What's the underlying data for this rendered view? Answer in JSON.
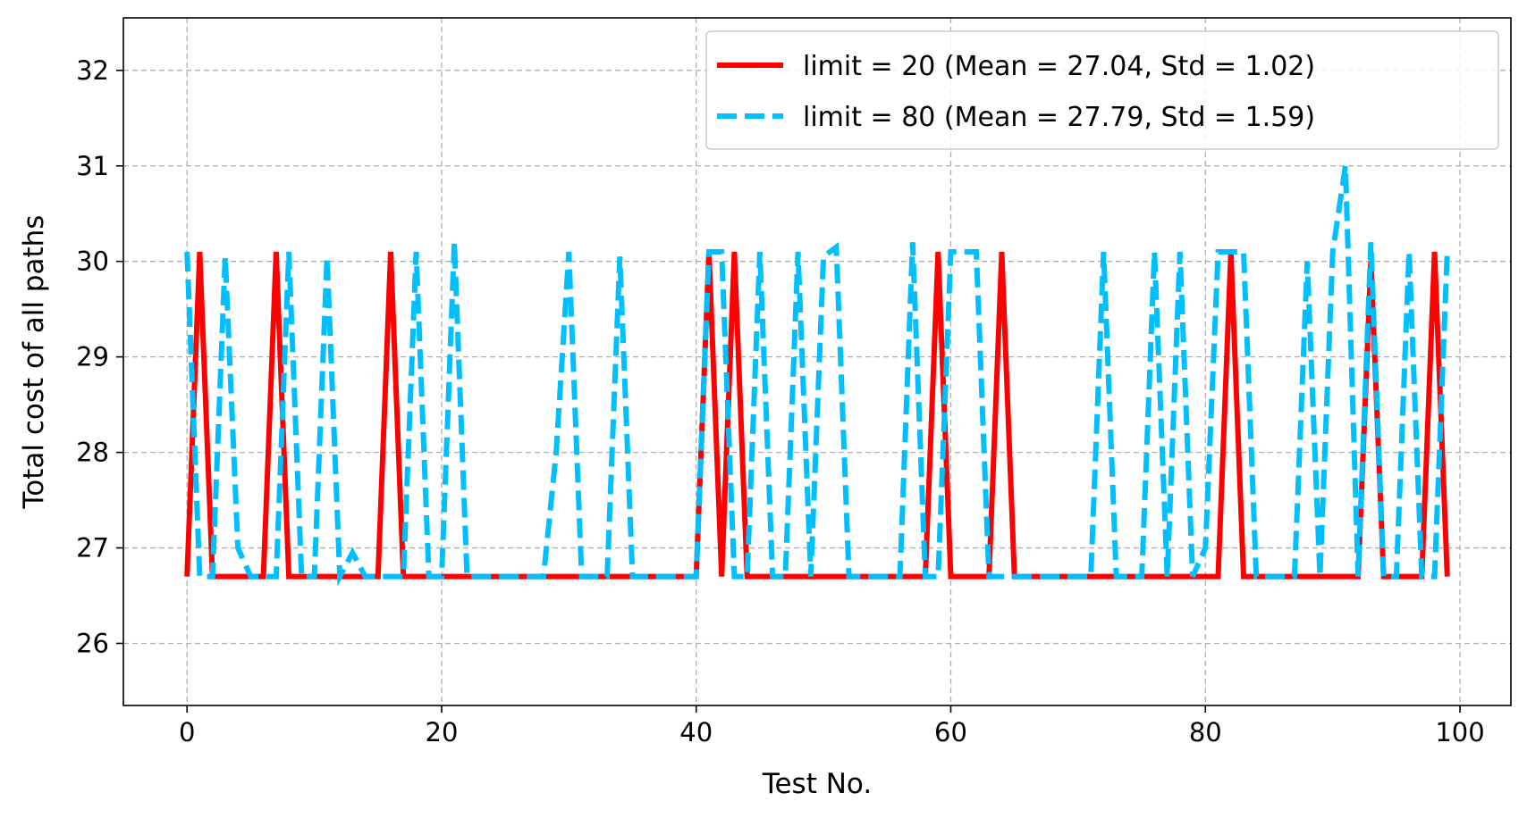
{
  "chart_data": {
    "type": "line",
    "xlabel": "Test No.",
    "ylabel": "Total cost of all paths",
    "xlim": [
      -5,
      104
    ],
    "ylim": [
      25.35,
      32.55
    ],
    "xticks": [
      0,
      20,
      40,
      60,
      80,
      100
    ],
    "yticks": [
      26,
      27,
      28,
      29,
      30,
      31,
      32
    ],
    "grid": true,
    "legend_position": "top-right",
    "series": [
      {
        "name": "limit = 20 (Mean = 27.04, Std = 1.02)",
        "color": "#ff0000",
        "style": "solid",
        "x": [
          0,
          1,
          2,
          6,
          7,
          8,
          15,
          16,
          17,
          40,
          41,
          42,
          43,
          44,
          58,
          59,
          60,
          63,
          64,
          65,
          81,
          82,
          83,
          92,
          93,
          94,
          97,
          98,
          99
        ],
        "y": [
          26.7,
          30.1,
          26.7,
          26.7,
          30.1,
          26.7,
          26.7,
          30.1,
          26.7,
          26.7,
          30.1,
          26.7,
          30.1,
          26.7,
          26.7,
          30.1,
          26.7,
          26.7,
          30.1,
          26.7,
          26.7,
          30.1,
          26.7,
          26.7,
          30.0,
          26.7,
          26.7,
          30.1,
          26.7
        ]
      },
      {
        "name": "limit = 80 (Mean = 27.79, Std = 1.59)",
        "color": "#00bfff",
        "style": "dashed",
        "x": [
          0,
          1,
          2,
          3,
          4,
          5,
          6,
          7,
          8,
          9,
          10,
          11,
          12,
          13,
          14,
          17,
          18,
          19,
          20,
          21,
          22,
          28,
          29,
          30,
          31,
          33,
          34,
          35,
          40,
          41,
          42,
          43,
          44,
          45,
          46,
          47,
          48,
          49,
          50,
          51,
          52,
          56,
          57,
          58,
          59,
          60,
          61,
          62,
          63,
          71,
          72,
          73,
          75,
          76,
          77,
          78,
          79,
          80,
          81,
          82,
          83,
          84,
          87,
          88,
          89,
          90,
          91,
          92,
          93,
          94,
          95,
          96,
          97,
          98,
          99
        ],
        "y": [
          30.1,
          26.7,
          26.7,
          30.05,
          27.0,
          26.7,
          26.7,
          26.7,
          30.1,
          26.7,
          26.7,
          30.05,
          26.7,
          26.95,
          26.7,
          26.7,
          30.1,
          26.7,
          26.7,
          30.2,
          26.7,
          26.7,
          28.0,
          30.1,
          26.7,
          26.7,
          30.05,
          26.7,
          26.7,
          30.1,
          30.1,
          26.7,
          26.7,
          30.1,
          26.7,
          26.7,
          30.1,
          26.7,
          30.05,
          30.15,
          26.7,
          26.7,
          30.2,
          26.7,
          26.7,
          30.1,
          30.1,
          30.1,
          26.7,
          26.7,
          30.1,
          26.7,
          26.7,
          30.1,
          26.7,
          30.1,
          26.7,
          27.0,
          30.1,
          30.1,
          30.1,
          26.7,
          26.7,
          30.0,
          26.7,
          30.1,
          31.0,
          26.7,
          30.2,
          26.7,
          26.7,
          30.1,
          26.7,
          26.7,
          30.1
        ]
      }
    ]
  }
}
